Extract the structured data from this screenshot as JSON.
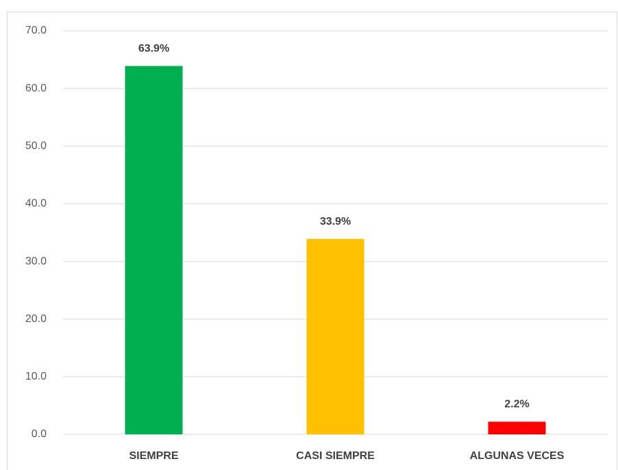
{
  "chart_data": {
    "type": "bar",
    "categories": [
      "SIEMPRE",
      "CASI SIEMPRE",
      "ALGUNAS VECES"
    ],
    "values": [
      63.9,
      33.9,
      2.2
    ],
    "value_labels": [
      "63.9%",
      "33.9%",
      "2.2%"
    ],
    "colors": [
      "#00b050",
      "#ffc000",
      "#ff0000"
    ],
    "ylim": [
      0,
      70
    ],
    "yticks": [
      {
        "value": 0,
        "label": "0.0"
      },
      {
        "value": 10,
        "label": "10.0"
      },
      {
        "value": 20,
        "label": "20.0"
      },
      {
        "value": 30,
        "label": "30.0"
      },
      {
        "value": 40,
        "label": "40.0"
      },
      {
        "value": 50,
        "label": "50.0"
      },
      {
        "value": 60,
        "label": "60.0"
      },
      {
        "value": 70,
        "label": "70.0"
      }
    ],
    "grid": true
  }
}
